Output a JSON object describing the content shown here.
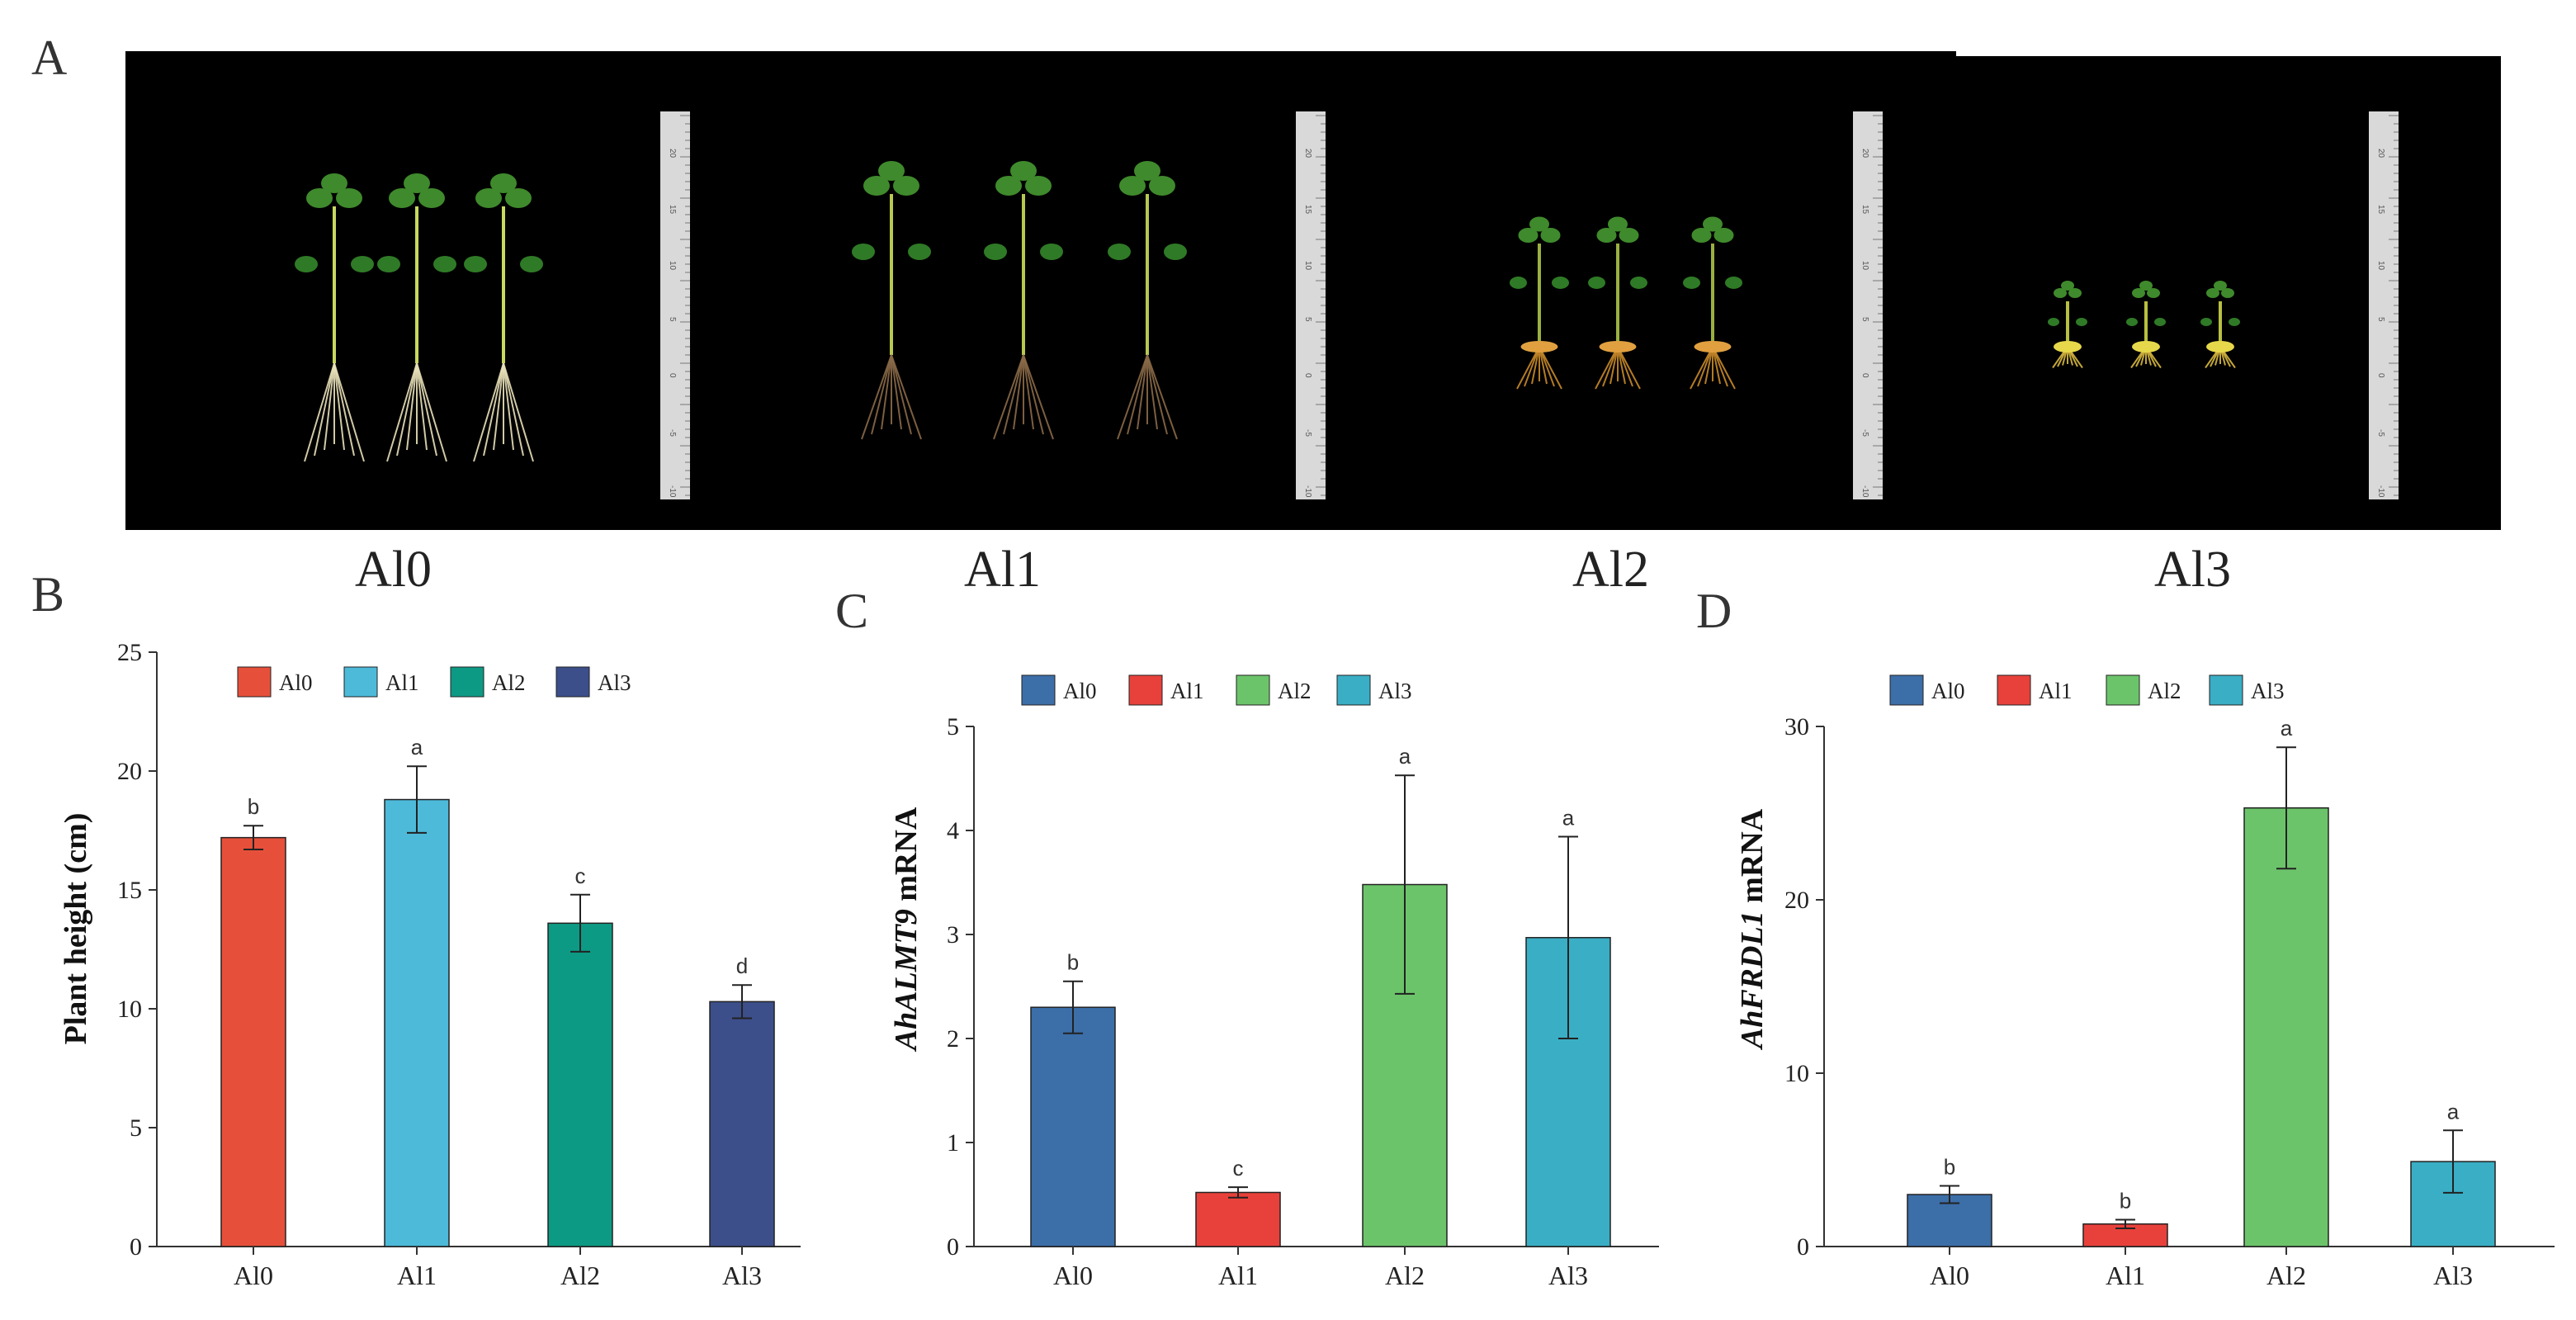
{
  "panels": {
    "a": "A",
    "b": "B",
    "c": "C",
    "d": "D"
  },
  "photo": {
    "labels": [
      "Al0",
      "Al1",
      "Al2",
      "Al3"
    ],
    "ruler_ticks": [
      "20",
      "15",
      "10",
      "5",
      "0",
      "-5",
      "-10"
    ]
  },
  "chart_data": [
    {
      "type": "bar",
      "panel": "B",
      "categories": [
        "Al0",
        "Al1",
        "Al2",
        "Al3"
      ],
      "values": [
        17.2,
        18.8,
        13.6,
        10.3
      ],
      "errors": [
        0.5,
        1.4,
        1.2,
        0.7
      ],
      "letters": [
        "b",
        "a",
        "c",
        "d"
      ],
      "colors": [
        "#e6503a",
        "#4dbad9",
        "#0d9a84",
        "#3c4f8a"
      ],
      "legend": [
        "Al0",
        "Al1",
        "Al2",
        "Al3"
      ],
      "ylabel": "Plant height (cm)",
      "ylim": [
        0,
        25
      ],
      "yticks": [
        "0",
        "5",
        "10",
        "15",
        "20",
        "25"
      ],
      "legend_position": "top"
    },
    {
      "type": "bar",
      "panel": "C",
      "categories": [
        "Al0",
        "Al1",
        "Al2",
        "Al3"
      ],
      "values": [
        2.3,
        0.52,
        3.48,
        2.97
      ],
      "errors": [
        0.25,
        0.05,
        1.05,
        0.97
      ],
      "letters": [
        "b",
        "c",
        "a",
        "a"
      ],
      "colors": [
        "#3c6ea8",
        "#e8413b",
        "#6cc46a",
        "#3aaec5"
      ],
      "legend": [
        "Al0",
        "Al1",
        "Al2",
        "Al3"
      ],
      "ylabel_italic": "AhALMT9",
      "ylabel_rest": " mRNA",
      "ylim": [
        0,
        5
      ],
      "yticks": [
        "0",
        "1",
        "2",
        "3",
        "4",
        "5"
      ],
      "legend_position": "top"
    },
    {
      "type": "bar",
      "panel": "D",
      "categories": [
        "Al0",
        "Al1",
        "Al2",
        "Al3"
      ],
      "values": [
        3.0,
        1.3,
        25.3,
        4.9
      ],
      "errors": [
        0.5,
        0.25,
        3.5,
        1.8
      ],
      "letters": [
        "b",
        "b",
        "a",
        "a"
      ],
      "colors": [
        "#3c6ea8",
        "#e8413b",
        "#6cc46a",
        "#3aaec5"
      ],
      "legend": [
        "Al0",
        "Al1",
        "Al2",
        "Al3"
      ],
      "ylabel_italic": "AhFRDL1",
      "ylabel_rest": " mRNA",
      "ylim": [
        0,
        30
      ],
      "yticks": [
        "0",
        "10",
        "20",
        "30"
      ],
      "legend_position": "top"
    }
  ]
}
